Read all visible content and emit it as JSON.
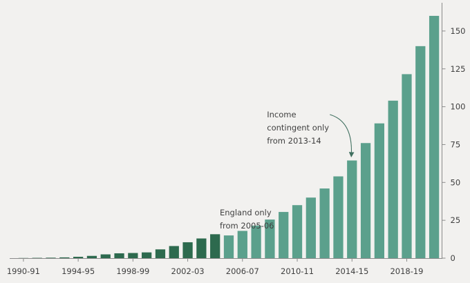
{
  "chart_data": {
    "type": "bar",
    "title": "",
    "xlabel": "",
    "ylabel": "",
    "ylim": [
      0,
      165
    ],
    "yticks": [
      0,
      25,
      50,
      75,
      100,
      125,
      150
    ],
    "y_axis_side": "right",
    "grid": false,
    "categories": [
      "1990-91",
      "1991-92",
      "1992-93",
      "1993-94",
      "1994-95",
      "1995-96",
      "1996-97",
      "1997-98",
      "1998-99",
      "1999-00",
      "2000-01",
      "2001-02",
      "2002-03",
      "2003-04",
      "2004-05",
      "2005-06",
      "2006-07",
      "2007-08",
      "2008-09",
      "2009-10",
      "2010-11",
      "2011-12",
      "2012-13",
      "2013-14",
      "2014-15",
      "2015-16",
      "2016-17",
      "2017-18",
      "2018-19",
      "2019-20",
      "2020-21"
    ],
    "xtick_labels": [
      "1990-91",
      "1994-95",
      "1998-99",
      "2002-03",
      "2006-07",
      "2010-11",
      "2014-15",
      "2018-19"
    ],
    "values": [
      0.1,
      0.2,
      0.3,
      0.5,
      0.9,
      1.5,
      2.5,
      3.2,
      3.4,
      3.8,
      5.8,
      8,
      10.5,
      13,
      15.8,
      15,
      18,
      21.5,
      25.5,
      30.5,
      35,
      40,
      46,
      54,
      64.5,
      76,
      89,
      104,
      121.5,
      140,
      160
    ],
    "bar_colors": {
      "dark_until": "2004-05",
      "dark": "#2d6a4e",
      "light": "#5ba08c"
    },
    "annotations": [
      {
        "lines": [
          "England only",
          "from 2005-06"
        ],
        "category": "2005-06",
        "arrow": false
      },
      {
        "lines": [
          "Income",
          "contingent  only",
          "from 2013-14"
        ],
        "category": "2014-15",
        "arrow": true
      }
    ],
    "axis_color": "#8a8a8a",
    "background": "#f2f1ef"
  }
}
